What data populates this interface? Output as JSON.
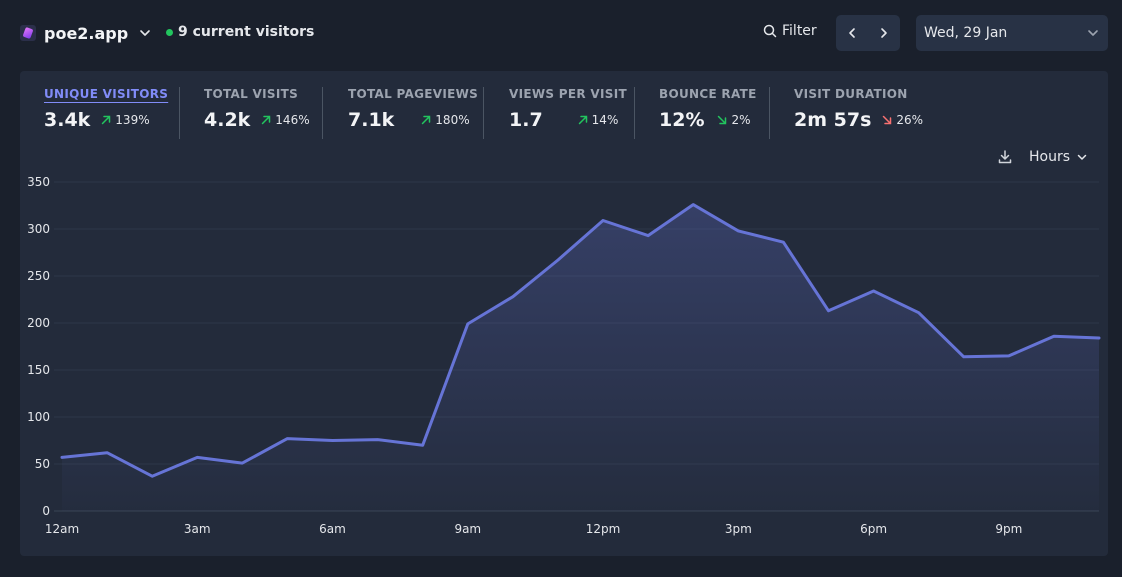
{
  "header": {
    "site_name": "poe2.app",
    "current_visitors": "9 current visitors",
    "filter_label": "Filter",
    "date_label": "Wed, 29 Jan"
  },
  "metrics": [
    {
      "label": "UNIQUE VISITORS",
      "value": "3.4k",
      "change": "139%",
      "direction": "up"
    },
    {
      "label": "TOTAL VISITS",
      "value": "4.2k",
      "change": "146%",
      "direction": "up"
    },
    {
      "label": "TOTAL PAGEVIEWS",
      "value": "7.1k",
      "change": "180%",
      "direction": "up"
    },
    {
      "label": "VIEWS PER VISIT",
      "value": "1.7",
      "change": "14%",
      "direction": "up"
    },
    {
      "label": "BOUNCE RATE",
      "value": "12%",
      "change": "2%",
      "direction": "down-good"
    },
    {
      "label": "VISIT DURATION",
      "value": "2m 57s",
      "change": "26%",
      "direction": "down-bad"
    }
  ],
  "chart_tools": {
    "interval_label": "Hours"
  },
  "colors": {
    "line": "#6674d6",
    "up": "#22c55e",
    "down_bad": "#f87171",
    "accent": "#818cf8"
  },
  "chart_data": {
    "type": "area",
    "x": [
      "12am",
      "1am",
      "2am",
      "3am",
      "4am",
      "5am",
      "6am",
      "7am",
      "8am",
      "9am",
      "10am",
      "11am",
      "12pm",
      "1pm",
      "2pm",
      "3pm",
      "4pm",
      "5pm",
      "6pm",
      "7pm",
      "8pm",
      "9pm",
      "10pm",
      "11pm"
    ],
    "x_tick_labels": [
      "12am",
      "3am",
      "6am",
      "9am",
      "12pm",
      "3pm",
      "6pm",
      "9pm"
    ],
    "y_tick_labels": [
      "0",
      "50",
      "100",
      "150",
      "200",
      "250",
      "300",
      "350"
    ],
    "series": [
      {
        "values": [
          57,
          62,
          37,
          57,
          51,
          77,
          75,
          76,
          70,
          199,
          228,
          267,
          309,
          293,
          326,
          298,
          286,
          213,
          234,
          211,
          164,
          165,
          186,
          184
        ]
      }
    ],
    "ylim": [
      0,
      350
    ],
    "grid": true,
    "legend": false
  }
}
